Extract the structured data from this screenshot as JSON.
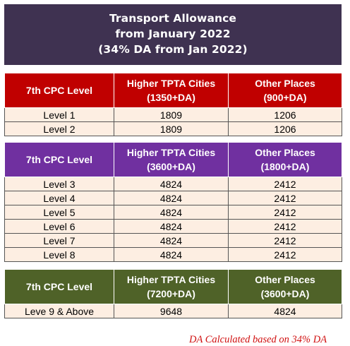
{
  "banner": {
    "line1": "Transport Allowance",
    "line2": "from January 2022",
    "line3": "(34% DA from Jan 2022)"
  },
  "tables": [
    {
      "header": {
        "col1": "7th CPC Level",
        "col2_line1": "Higher TPTA Cities",
        "col2_line2": "(1350+DA)",
        "col3_line1": "Other Places",
        "col3_line2": "(900+DA)"
      },
      "rows": [
        {
          "level": "Level 1",
          "higher": "1809",
          "other": "1206"
        },
        {
          "level": "Level 2",
          "higher": "1809",
          "other": "1206"
        }
      ]
    },
    {
      "header": {
        "col1": "7th CPC Level",
        "col2_line1": "Higher TPTA Cities",
        "col2_line2": "(3600+DA)",
        "col3_line1": "Other Places",
        "col3_line2": "(1800+DA)"
      },
      "rows": [
        {
          "level": "Level 3",
          "higher": "4824",
          "other": "2412"
        },
        {
          "level": "Level 4",
          "higher": "4824",
          "other": "2412"
        },
        {
          "level": "Level 5",
          "higher": "4824",
          "other": "2412"
        },
        {
          "level": "Level 6",
          "higher": "4824",
          "other": "2412"
        },
        {
          "level": "Level 7",
          "higher": "4824",
          "other": "2412"
        },
        {
          "level": "Level 8",
          "higher": "4824",
          "other": "2412"
        }
      ]
    },
    {
      "header": {
        "col1": "7th CPC Level",
        "col2_line1": "Higher TPTA Cities",
        "col2_line2": "(7200+DA)",
        "col3_line1": "Other Places",
        "col3_line2": "(3600+DA)"
      },
      "rows": [
        {
          "level": "Leve 9 & Above",
          "higher": "9648",
          "other": "4824"
        }
      ]
    }
  ],
  "footnote": "DA Calculated based on 34% DA",
  "colors": {
    "banner_bg": "#3f3251",
    "table1_header": "#c00000",
    "table2_header": "#7030a0",
    "table3_header": "#4f6228",
    "row_bg": "#fdeee2",
    "footnote": "#d01010"
  }
}
